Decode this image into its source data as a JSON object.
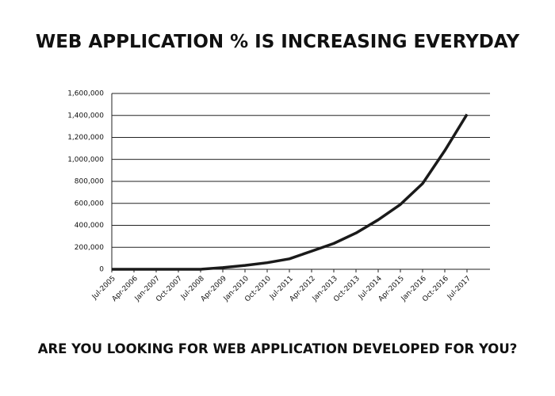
{
  "chart_data": {
    "type": "line",
    "title": "WEB APPLICATION % IS INCREASING EVERYDAY",
    "subtitle": "ARE YOU LOOKING FOR WEB APPLICATION DEVELOPED FOR YOU?",
    "categories": [
      "Jul-2005",
      "Apr-2006",
      "Jan-2007",
      "Oct-2007",
      "Jul-2008",
      "Apr-2009",
      "Jan-2010",
      "Oct-2010",
      "Jul-2011",
      "Apr-2012",
      "Jan-2013",
      "Oct-2013",
      "Jul-2014",
      "Apr-2015",
      "Jan-2016",
      "Oct-2016",
      "Jul-2017"
    ],
    "values": [
      0,
      0,
      0,
      0,
      0,
      15000,
      35000,
      60000,
      95000,
      165000,
      235000,
      330000,
      450000,
      590000,
      780000,
      1080000,
      1410000
    ],
    "color": "#1a1a1a",
    "ylim": [
      0,
      1600000
    ],
    "yticks": [
      0,
      {
        "value": 200000,
        "label": "200,000"
      },
      {
        "value": 400000,
        "label": "400,000"
      },
      {
        "value": 600000,
        "label": "600,000"
      },
      {
        "value": 800000,
        "label": "800,000"
      },
      {
        "value": 1000000,
        "label": "1,000,000"
      },
      {
        "value": 1200000,
        "label": "1,200,000"
      },
      {
        "value": 1400000,
        "label": "1,400,000"
      },
      {
        "value": 1600000,
        "label": "1,600,000"
      }
    ],
    "grid": true
  }
}
